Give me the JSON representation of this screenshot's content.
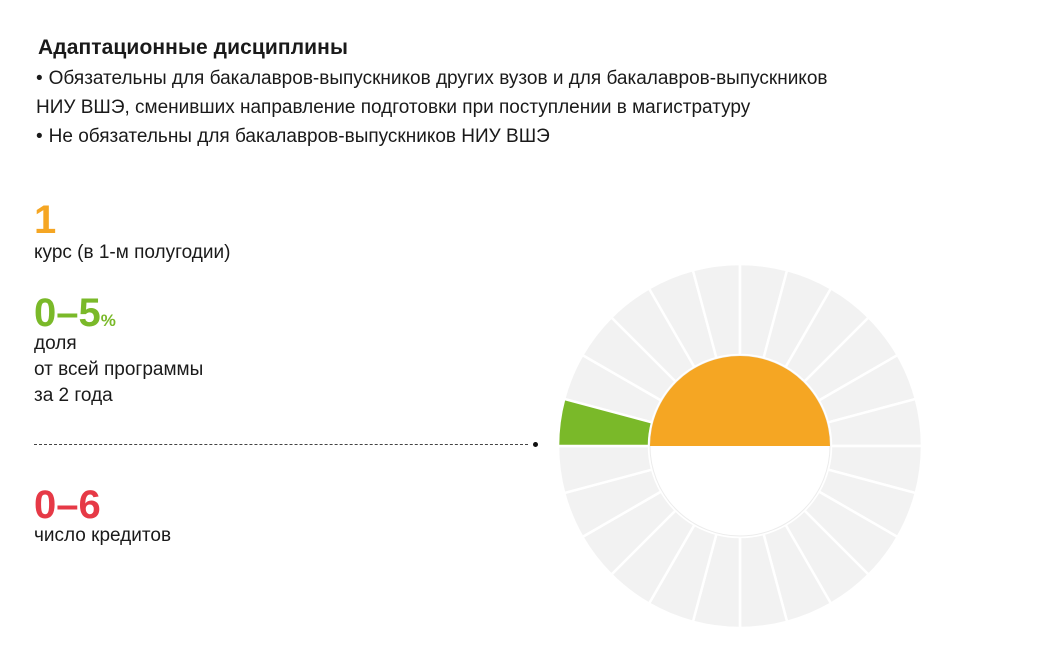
{
  "title": "Адаптационные дисциплины",
  "bullets": [
    "Обязательны для бакалавров-выпускников других вузов и для бакалавров-выпускников НИУ ВШЭ, сменивших направление подготовки при поступлении в магистратуру",
    "Не обязательны для бакалавров-выпускников НИУ ВШЭ"
  ],
  "stats": {
    "course": {
      "value": "1",
      "label": "курс (в 1-м полугодии)"
    },
    "share": {
      "value": "0–5",
      "suffix": "%",
      "label_lines": [
        "доля",
        "от всей программы",
        "за 2 года"
      ]
    },
    "credits": {
      "value": "0–6",
      "label": "число кредитов"
    }
  },
  "colors": {
    "course": "#f5a623",
    "share": "#7ab929",
    "credits": "#e63946",
    "segment_empty": "#f2f2f2",
    "segment_gap": "#ffffff"
  },
  "chart_data": {
    "type": "radial",
    "segments_total": 24,
    "highlighted_segments": 1,
    "highlight_color": "#7ab929",
    "inner_semicircle": "upper-half-filled",
    "inner_color": "#f5a623"
  }
}
